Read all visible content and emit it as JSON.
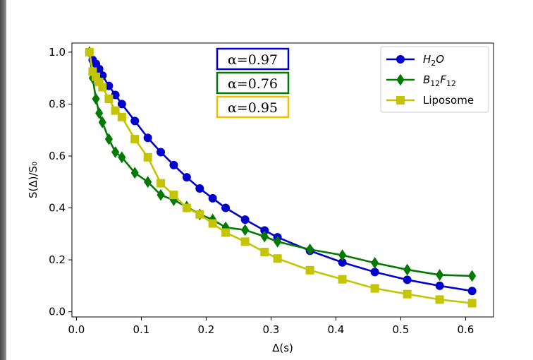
{
  "chart_data": {
    "type": "line",
    "xlabel": "Δ(s)",
    "ylabel": "S(Δ)/S₀",
    "xlim": [
      -0.007,
      0.643
    ],
    "ylim": [
      -0.02,
      1.035
    ],
    "xticks": [
      0.0,
      0.1,
      0.2,
      0.3,
      0.4,
      0.5,
      0.6
    ],
    "xtick_labels": [
      "0.0",
      "0.1",
      "0.2",
      "0.3",
      "0.4",
      "0.5",
      "0.6"
    ],
    "yticks": [
      0.0,
      0.2,
      0.4,
      0.6,
      0.8,
      1.0
    ],
    "ytick_labels": [
      "0.0",
      "0.2",
      "0.4",
      "0.6",
      "0.8",
      "1.0"
    ],
    "legend_position": "top-right",
    "series": [
      {
        "name": "H2O",
        "label_base": "H",
        "label_sub": "2",
        "label_tail": "O",
        "color": "#0000cc",
        "marker": "circle",
        "x": [
          0.02,
          0.025,
          0.03,
          0.035,
          0.04,
          0.05,
          0.06,
          0.07,
          0.09,
          0.11,
          0.13,
          0.15,
          0.17,
          0.19,
          0.21,
          0.23,
          0.26,
          0.29,
          0.31,
          0.36,
          0.41,
          0.46,
          0.51,
          0.56,
          0.61
        ],
        "y": [
          1.0,
          0.97,
          0.955,
          0.935,
          0.91,
          0.87,
          0.835,
          0.8,
          0.735,
          0.67,
          0.615,
          0.565,
          0.518,
          0.475,
          0.437,
          0.4,
          0.355,
          0.313,
          0.287,
          0.235,
          0.19,
          0.153,
          0.123,
          0.1,
          0.08
        ]
      },
      {
        "name": "B12F12",
        "label_base": "B",
        "label_sub": "12",
        "label_tail": "F",
        "label_sub2": "12",
        "color": "#007a00",
        "marker": "diamond",
        "x": [
          0.02,
          0.025,
          0.03,
          0.035,
          0.04,
          0.05,
          0.06,
          0.07,
          0.09,
          0.11,
          0.13,
          0.15,
          0.17,
          0.19,
          0.21,
          0.23,
          0.26,
          0.29,
          0.31,
          0.36,
          0.41,
          0.46,
          0.51,
          0.56,
          0.61
        ],
        "y": [
          1.0,
          0.9,
          0.82,
          0.765,
          0.73,
          0.665,
          0.615,
          0.595,
          0.535,
          0.5,
          0.45,
          0.43,
          0.405,
          0.375,
          0.355,
          0.325,
          0.315,
          0.29,
          0.27,
          0.24,
          0.218,
          0.188,
          0.162,
          0.142,
          0.138
        ]
      },
      {
        "name": "Liposome",
        "label_base": "Liposome",
        "color": "#c4c400",
        "marker": "square",
        "x": [
          0.02,
          0.025,
          0.03,
          0.035,
          0.04,
          0.05,
          0.06,
          0.07,
          0.09,
          0.11,
          0.13,
          0.15,
          0.17,
          0.19,
          0.21,
          0.23,
          0.26,
          0.29,
          0.31,
          0.36,
          0.41,
          0.46,
          0.51,
          0.56,
          0.61
        ],
        "y": [
          1.0,
          0.925,
          0.905,
          0.885,
          0.865,
          0.82,
          0.775,
          0.75,
          0.665,
          0.595,
          0.495,
          0.45,
          0.4,
          0.375,
          0.34,
          0.305,
          0.27,
          0.23,
          0.205,
          0.16,
          0.125,
          0.09,
          0.068,
          0.047,
          0.033
        ]
      }
    ],
    "annotations": [
      {
        "text": "α=0.97",
        "color": "#0000cc"
      },
      {
        "text": "α=0.76",
        "color": "#007a00"
      },
      {
        "text": "α=0.95",
        "color": "#f0c000"
      }
    ]
  }
}
